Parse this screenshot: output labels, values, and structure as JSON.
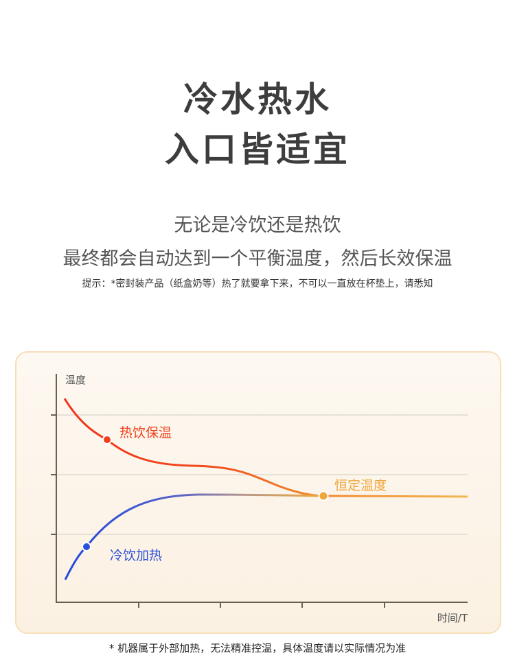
{
  "heading": {
    "line1": "冷水热水",
    "line2": "入口皆适宜"
  },
  "subheading": {
    "line1": "无论是冷饮还是热饮",
    "line2": "最终都会自动达到一个平衡温度，然后长效保温"
  },
  "tip": "提示：*密封装产品（纸盒奶等）热了就要拿下来，不可以一直放在杯垫上，请悉知",
  "diagram": {
    "y_axis_label": "温度",
    "x_axis_label": "时间/T",
    "hot_label": "热饮保温",
    "cold_label": "冷饮加热",
    "equilibrium_label": "恒定温度",
    "colors": {
      "hot": "#f2401c",
      "cold": "#2a4fd8",
      "equilibrium": "#f0a63a",
      "grid": "#d8d4cc",
      "axis": "#6a5f55"
    }
  },
  "footnote": "* 机器属于外部加热，无法精准控温，具体温度请以实际情况为准"
}
